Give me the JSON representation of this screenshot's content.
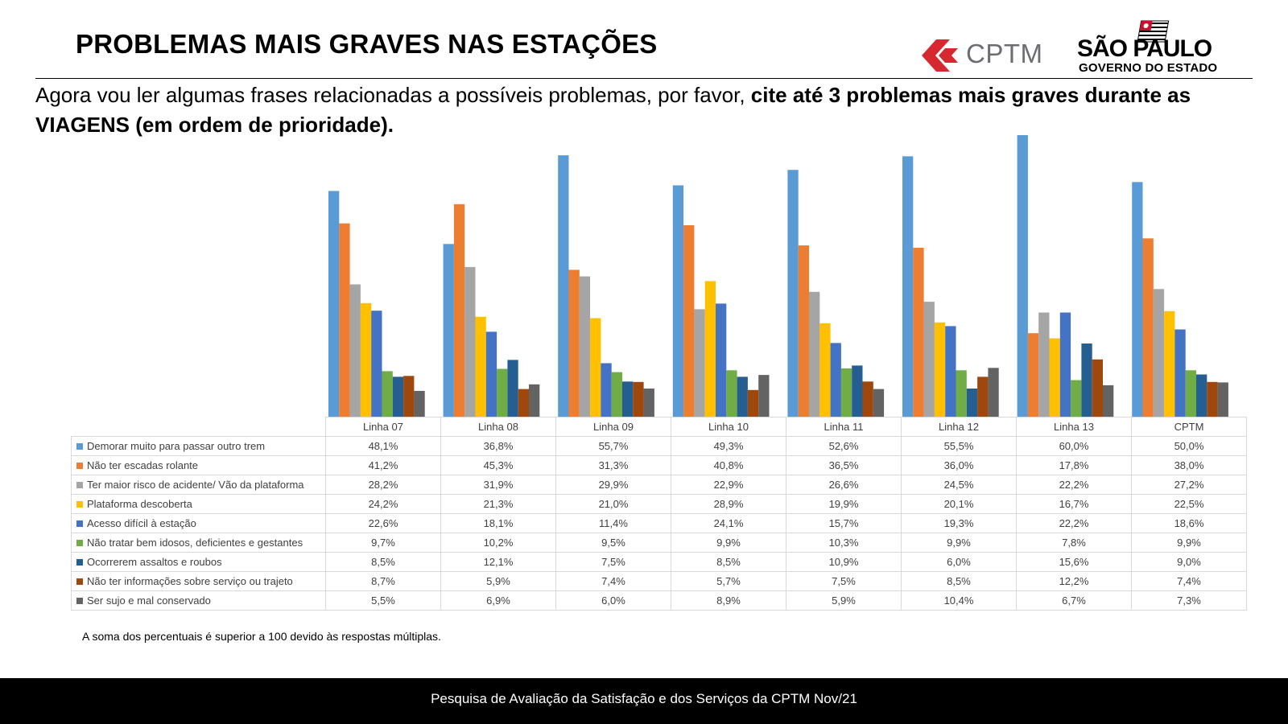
{
  "header": {
    "title": "PROBLEMAS MAIS GRAVES NAS ESTAÇÕES",
    "logo_cptm": "CPTM",
    "logo_sp_name": "SÃO PAULO",
    "logo_sp_sub": "GOVERNO DO ESTADO"
  },
  "question": {
    "normal": "Agora vou ler algumas frases relacionadas a possíveis problemas, por favor, ",
    "bold": "cite até 3 problemas mais graves durante as VIAGENS (em ordem de prioridade)."
  },
  "chart_data": {
    "type": "bar",
    "categories": [
      "Linha 07",
      "Linha 08",
      "Linha 09",
      "Linha 10",
      "Linha 11",
      "Linha 12",
      "Linha 13",
      "CPTM"
    ],
    "ylim": [
      0,
      60
    ],
    "series": [
      {
        "name": "Demorar muito para passar outro trem",
        "color": "#5b9bd5",
        "values": [
          48.1,
          36.8,
          55.7,
          49.3,
          52.6,
          55.5,
          60.0,
          50.0
        ],
        "labels": [
          "48,1%",
          "36,8%",
          "55,7%",
          "49,3%",
          "52,6%",
          "55,5%",
          "60,0%",
          "50,0%"
        ]
      },
      {
        "name": "Não ter escadas rolante",
        "color": "#ed7d31",
        "values": [
          41.2,
          45.3,
          31.3,
          40.8,
          36.5,
          36.0,
          17.8,
          38.0
        ],
        "labels": [
          "41,2%",
          "45,3%",
          "31,3%",
          "40,8%",
          "36,5%",
          "36,0%",
          "17,8%",
          "38,0%"
        ]
      },
      {
        "name": "Ter maior risco de acidente/ Vão da plataforma",
        "color": "#a5a5a5",
        "values": [
          28.2,
          31.9,
          29.9,
          22.9,
          26.6,
          24.5,
          22.2,
          27.2
        ],
        "labels": [
          "28,2%",
          "31,9%",
          "29,9%",
          "22,9%",
          "26,6%",
          "24,5%",
          "22,2%",
          "27,2%"
        ]
      },
      {
        "name": "Plataforma descoberta",
        "color": "#ffc000",
        "values": [
          24.2,
          21.3,
          21.0,
          28.9,
          19.9,
          20.1,
          16.7,
          22.5
        ],
        "labels": [
          "24,2%",
          "21,3%",
          "21,0%",
          "28,9%",
          "19,9%",
          "20,1%",
          "16,7%",
          "22,5%"
        ]
      },
      {
        "name": "Acesso difícil à estação",
        "color": "#4472c4",
        "values": [
          22.6,
          18.1,
          11.4,
          24.1,
          15.7,
          19.3,
          22.2,
          18.6
        ],
        "labels": [
          "22,6%",
          "18,1%",
          "11,4%",
          "24,1%",
          "15,7%",
          "19,3%",
          "22,2%",
          "18,6%"
        ]
      },
      {
        "name": "Não tratar bem idosos, deficientes e gestantes",
        "color": "#70ad47",
        "values": [
          9.7,
          10.2,
          9.5,
          9.9,
          10.3,
          9.9,
          7.8,
          9.9
        ],
        "labels": [
          "9,7%",
          "10,2%",
          "9,5%",
          "9,9%",
          "10,3%",
          "9,9%",
          "7,8%",
          "9,9%"
        ]
      },
      {
        "name": "Ocorrerem assaltos e roubos",
        "color": "#255e91",
        "values": [
          8.5,
          12.1,
          7.5,
          8.5,
          10.9,
          6.0,
          15.6,
          9.0
        ],
        "labels": [
          "8,5%",
          "12,1%",
          "7,5%",
          "8,5%",
          "10,9%",
          "6,0%",
          "15,6%",
          "9,0%"
        ]
      },
      {
        "name": "Não ter informações sobre serviço ou trajeto",
        "color": "#9e480e",
        "values": [
          8.7,
          5.9,
          7.4,
          5.7,
          7.5,
          8.5,
          12.2,
          7.4
        ],
        "labels": [
          "8,7%",
          "5,9%",
          "7,4%",
          "5,7%",
          "7,5%",
          "8,5%",
          "12,2%",
          "7,4%"
        ]
      },
      {
        "name": "Ser sujo e mal conservado",
        "color": "#636363",
        "values": [
          5.5,
          6.9,
          6.0,
          8.9,
          5.9,
          10.4,
          6.7,
          7.3
        ],
        "labels": [
          "5,5%",
          "6,9%",
          "6,0%",
          "8,9%",
          "5,9%",
          "10,4%",
          "6,7%",
          "7,3%"
        ]
      }
    ]
  },
  "note": "A soma dos percentuais é superior  a 100 devido às respostas múltiplas.",
  "footer": "Pesquisa de Avaliação da Satisfação e dos Serviços da CPTM Nov/21"
}
